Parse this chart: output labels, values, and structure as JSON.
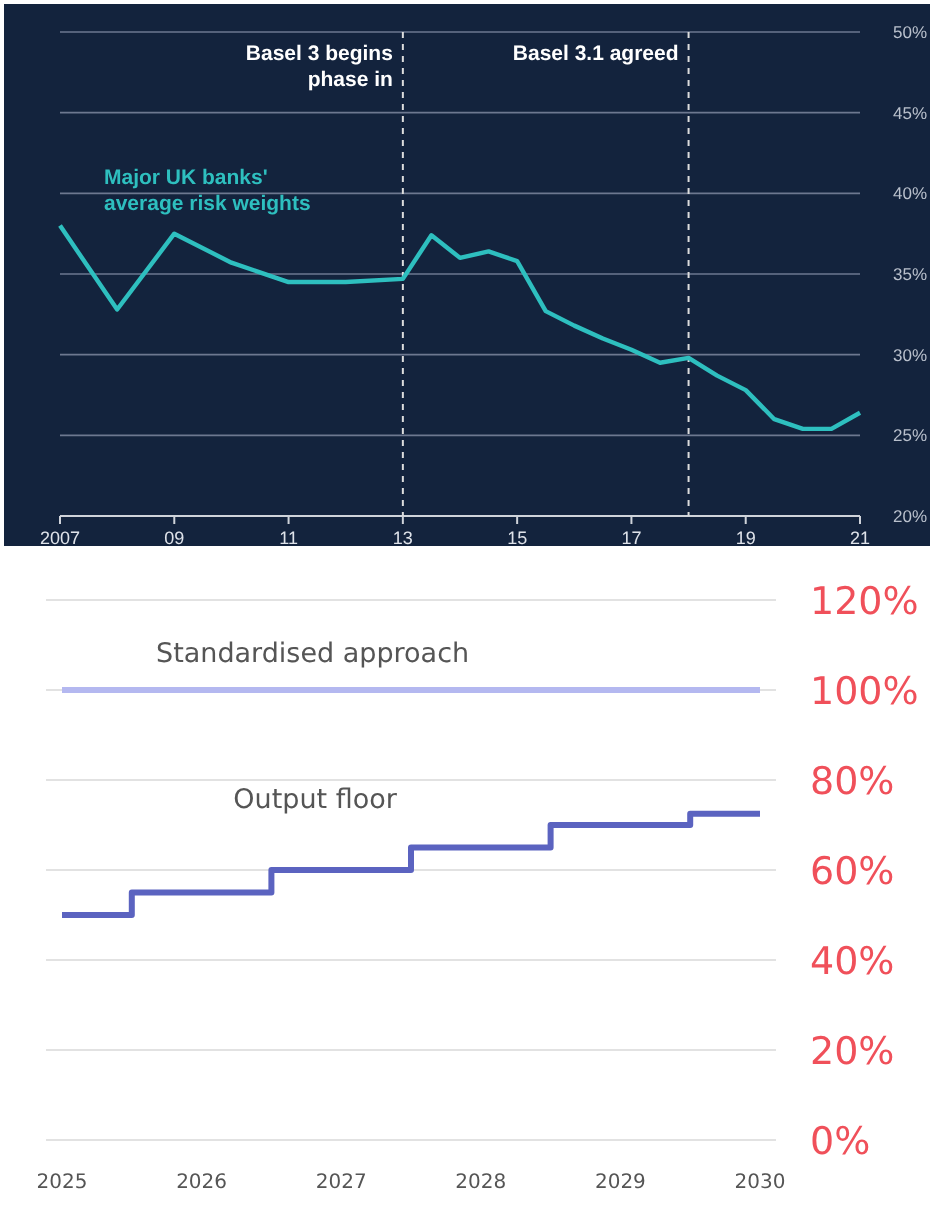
{
  "chart_data": [
    {
      "type": "line",
      "xlim": [
        2007,
        2021
      ],
      "ylim": [
        20,
        50
      ],
      "xticks": [
        2007,
        {
          "value": 2009,
          "label": "09"
        },
        {
          "value": 2011,
          "label": "11"
        },
        {
          "value": 2013,
          "label": "13"
        },
        {
          "value": 2015,
          "label": "15"
        },
        {
          "value": 2017,
          "label": "17"
        },
        {
          "value": 2019,
          "label": "19"
        },
        {
          "value": 2021,
          "label": "21"
        }
      ],
      "yticks": [
        {
          "value": 20,
          "label": "20%"
        },
        {
          "value": 25,
          "label": "25%"
        },
        {
          "value": 30,
          "label": "30%"
        },
        {
          "value": 35,
          "label": "35%"
        },
        {
          "value": 40,
          "label": "40%"
        },
        {
          "value": 45,
          "label": "45%"
        },
        {
          "value": 50,
          "label": "50%"
        }
      ],
      "grid": "y",
      "legend": false,
      "series": [
        {
          "name": "Major UK banks' average risk weights",
          "color": "#2ebfbf",
          "x": [
            2007,
            2008,
            2009,
            2010,
            2011,
            2012,
            2013,
            2013.5,
            2014,
            2014.5,
            2015,
            2015.5,
            2016,
            2016.5,
            2017,
            2017.5,
            2018,
            2018.5,
            2019,
            2019.5,
            2020,
            2020.5,
            2021
          ],
          "values": [
            38,
            32.8,
            37.5,
            35.7,
            34.5,
            34.5,
            34.7,
            37.4,
            36,
            36.4,
            35.8,
            32.7,
            31.8,
            31,
            30.3,
            29.5,
            29.8,
            28.7,
            27.8,
            26,
            25.4,
            25.4,
            26.4
          ]
        }
      ],
      "ref_lines": [
        {
          "axis": "x",
          "value": 2013,
          "label": "Basel 3 begins phase in",
          "line_style": "dashed",
          "color": "#dddddd"
        },
        {
          "axis": "x",
          "value": 2018,
          "label": "Basel 3.1 agreed",
          "line_style": "dashed",
          "color": "#dddddd"
        }
      ]
    },
    {
      "type": "step",
      "categories": [
        "2025",
        "2026",
        "2027",
        "2028",
        "2029",
        "2030"
      ],
      "ylim": [
        0,
        120
      ],
      "yticks": [
        {
          "value": 0,
          "label": "0%"
        },
        {
          "value": 20,
          "label": "20%"
        },
        {
          "value": 40,
          "label": "40%"
        },
        {
          "value": 60,
          "label": "60%"
        },
        {
          "value": 80,
          "label": "80%"
        },
        {
          "value": 100,
          "label": "100%"
        },
        {
          "value": 120,
          "label": "120%"
        }
      ],
      "grid": "y",
      "legend": false,
      "series": [
        {
          "name": "Standardised approach",
          "type": "line",
          "color": "#b4b8f0",
          "values": [
            100,
            100,
            100,
            100,
            100,
            100
          ]
        },
        {
          "name": "Output floor",
          "color": "#5b63c0",
          "values": [
            50,
            55,
            60,
            65,
            70,
            72.5
          ]
        }
      ]
    }
  ]
}
